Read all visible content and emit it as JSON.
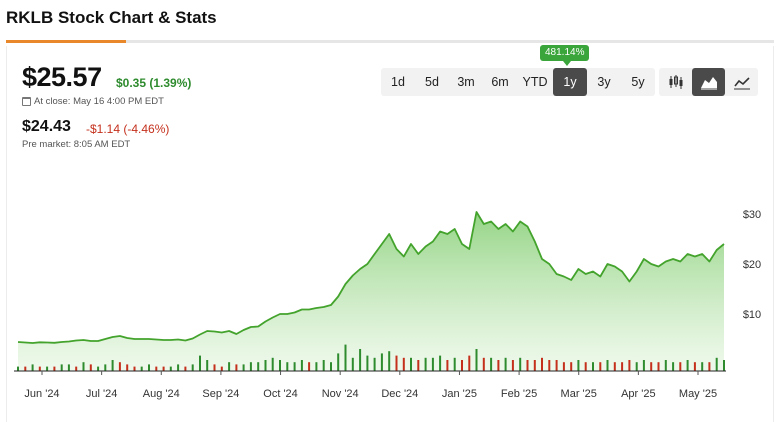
{
  "page": {
    "title": "RKLB Stock Chart & Stats"
  },
  "quote": {
    "close_price": "$25.57",
    "close_change": "$0.35 (1.39%)",
    "close_time": "At close: May 16 4:00 PM EDT",
    "pre_price": "$24.43",
    "pre_change": "-$1.14 (-4.46%)",
    "pre_time": "Pre market: 8:05 AM EDT"
  },
  "range_tabs": [
    "1d",
    "5d",
    "3m",
    "6m",
    "YTD",
    "1y",
    "3y",
    "5y"
  ],
  "active_range": "1y",
  "range_return_badge": "481.14%",
  "chart_type_buttons": [
    {
      "icon": "candlestick-icon",
      "active": false
    },
    {
      "icon": "area-chart-icon",
      "active": true
    },
    {
      "icon": "line-chart-icon",
      "active": false
    }
  ],
  "colors": {
    "up": "#2e8b2e",
    "down": "#c4301c",
    "line": "#43a32c",
    "area": "#8fd27f",
    "badge": "#3aa53a"
  },
  "chart_data": {
    "type": "area",
    "x_tick_labels": [
      "Jun '24",
      "Jul '24",
      "Aug '24",
      "Sep '24",
      "Oct '24",
      "Nov '24",
      "Dec '24",
      "Jan '25",
      "Feb '25",
      "Mar '25",
      "Apr '25",
      "May '25"
    ],
    "y_tick_labels": [
      "$30",
      "$20",
      "$10"
    ],
    "y_ticks": [
      30,
      20,
      10
    ],
    "ylim": [
      0,
      33
    ],
    "price": [
      4.4,
      4.3,
      4.2,
      4.35,
      4.3,
      4.25,
      4.4,
      4.5,
      4.7,
      4.8,
      4.6,
      4.6,
      5.0,
      5.4,
      5.6,
      5.2,
      5.0,
      5.0,
      5.0,
      4.9,
      4.8,
      4.8,
      4.9,
      4.7,
      5.1,
      5.9,
      6.6,
      6.5,
      6.3,
      6.6,
      6.0,
      6.8,
      7.4,
      7.5,
      8.5,
      9.3,
      10.0,
      10.0,
      10.3,
      10.9,
      10.9,
      11.2,
      11.4,
      11.8,
      13.5,
      16.0,
      17.7,
      19.0,
      20.0,
      22.0,
      24.0,
      26.0,
      23.0,
      21.5,
      24.0,
      22.0,
      23.5,
      24.5,
      26.5,
      26.0,
      27.0,
      24.0,
      23.0,
      30.4,
      28.0,
      28.5,
      27.0,
      28.0,
      26.5,
      28.5,
      27.5,
      24.5,
      21.0,
      20.0,
      18.0,
      17.5,
      16.8,
      19.0,
      18.0,
      18.5,
      17.5,
      20.0,
      19.5,
      18.5,
      16.5,
      18.5,
      21.0,
      20.0,
      19.5,
      20.5,
      21.0,
      20.5,
      22.0,
      21.5,
      22.0,
      20.5,
      22.8,
      24.0
    ],
    "volume": [
      2,
      2,
      3,
      2,
      2,
      2,
      3,
      3,
      2,
      4,
      3,
      2,
      3,
      5,
      4,
      3,
      2,
      2,
      3,
      2,
      2,
      2,
      3,
      2,
      3,
      7,
      5,
      3,
      2,
      4,
      3,
      3,
      4,
      4,
      5,
      6,
      5,
      4,
      4,
      5,
      4,
      4,
      5,
      4,
      8,
      12,
      6,
      10,
      7,
      6,
      8,
      9,
      7,
      6,
      6,
      5,
      6,
      6,
      7,
      5,
      6,
      5,
      7,
      10,
      6,
      6,
      5,
      6,
      5,
      6,
      5,
      5,
      6,
      5,
      5,
      4,
      4,
      5,
      4,
      4,
      4,
      5,
      4,
      4,
      5,
      4,
      5,
      4,
      4,
      5,
      4,
      4,
      5,
      4,
      4,
      4,
      6,
      5
    ],
    "volume_down": [
      false,
      true,
      false,
      true,
      false,
      true,
      false,
      false,
      true,
      false,
      true,
      false,
      false,
      false,
      true,
      true,
      true,
      false,
      false,
      true,
      true,
      false,
      false,
      true,
      false,
      false,
      false,
      true,
      true,
      false,
      true,
      false,
      false,
      false,
      false,
      false,
      false,
      false,
      false,
      false,
      true,
      false,
      false,
      false,
      false,
      false,
      false,
      false,
      false,
      false,
      false,
      false,
      true,
      true,
      false,
      true,
      false,
      false,
      false,
      true,
      false,
      true,
      true,
      false,
      true,
      false,
      true,
      false,
      true,
      false,
      true,
      true,
      true,
      true,
      true,
      true,
      true,
      false,
      true,
      false,
      true,
      false,
      true,
      true,
      true,
      false,
      false,
      true,
      true,
      false,
      false,
      true,
      false,
      true,
      false,
      true,
      false,
      false
    ]
  }
}
